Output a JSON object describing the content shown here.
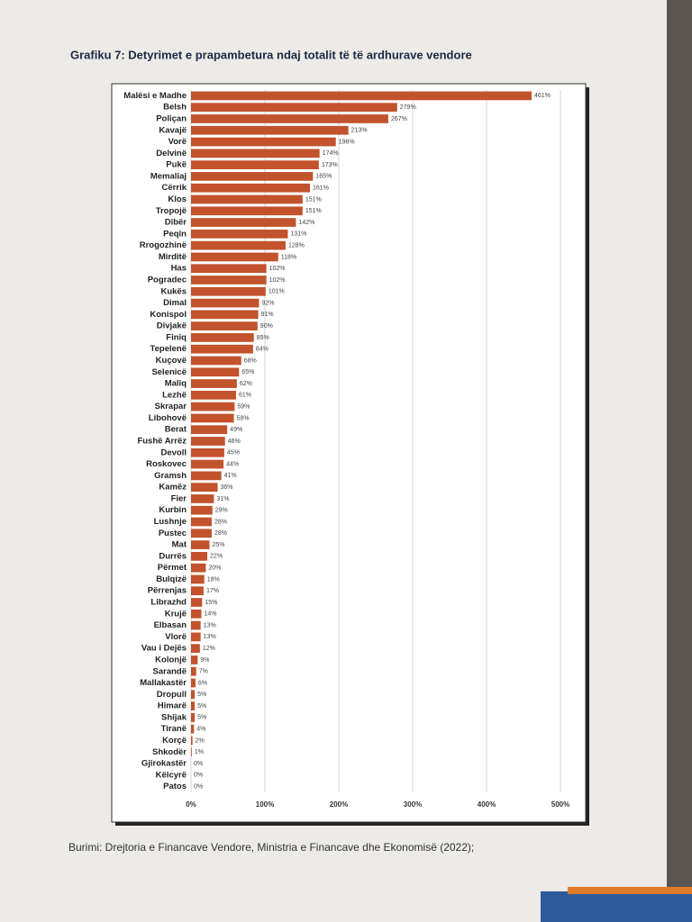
{
  "chart_data": {
    "type": "hbar",
    "title": "Grafiku 7: Detyrimet e prapambetura ndaj totalit të të ardhurave vendore",
    "source": "Burimi: Drejtoria e Financave Vendore, Ministria e Financave dhe Ekonomisë (2022);",
    "color": "#c2532c",
    "categories": [
      "Malësi e Madhe",
      "Belsh",
      "Poliçan",
      "Kavajë",
      "Vorë",
      "Delvinë",
      "Pukë",
      "Memaliaj",
      "Cërrik",
      "Klos",
      "Tropojë",
      "Dibër",
      "Peqin",
      "Rrogozhinë",
      "Mirditë",
      "Has",
      "Pogradec",
      "Kukës",
      "Dimal",
      "Konispol",
      "Divjakë",
      "Finiq",
      "Tepelenë",
      "Kuçovë",
      "Selenicë",
      "Maliq",
      "Lezhë",
      "Skrapar",
      "Libohovë",
      "Berat",
      "Fushë Arrëz",
      "Devoll",
      "Roskovec",
      "Gramsh",
      "Kamëz",
      "Fier",
      "Kurbin",
      "Lushnje",
      "Pustec",
      "Mat",
      "Durrës",
      "Përmet",
      "Bulqizë",
      "Përrenjas",
      "Librazhd",
      "Krujë",
      "Elbasan",
      "Vlorë",
      "Vau i Dejës",
      "Kolonjë",
      "Sarandë",
      "Mallakastër",
      "Dropull",
      "Himarë",
      "Shijak",
      "Tiranë",
      "Korçë",
      "Shkodër",
      "Gjirokastër",
      "Këlcyrë",
      "Patos"
    ],
    "values": [
      461,
      279,
      267,
      213,
      196,
      174,
      173,
      165,
      161,
      151,
      151,
      142,
      131,
      128,
      118,
      102,
      102,
      101,
      92,
      91,
      90,
      85,
      84,
      68,
      65,
      62,
      61,
      59,
      58,
      49,
      46,
      45,
      44,
      41,
      36,
      31,
      29,
      28,
      28,
      25,
      22,
      20,
      18,
      17,
      15,
      14,
      13,
      13,
      12,
      9,
      7,
      6,
      5,
      5,
      5,
      4,
      2,
      1,
      0,
      0,
      0
    ],
    "value_labels": [
      "461%",
      "279%",
      "267%",
      "213%",
      "196%",
      "174%",
      "173%",
      "165%",
      "161%",
      "151%",
      "151%",
      "142%",
      "131%",
      "128%",
      "118%",
      "102%",
      "102%",
      "101%",
      "92%",
      "91%",
      "90%",
      "85%",
      "84%",
      "68%",
      "65%",
      "62%",
      "61%",
      "59%",
      "58%",
      "49%",
      "46%",
      "45%",
      "44%",
      "41%",
      "36%",
      "31%",
      "29%",
      "28%",
      "28%",
      "25%",
      "22%",
      "20%",
      "18%",
      "17%",
      "15%",
      "14%",
      "13%",
      "13%",
      "12%",
      "9%",
      "7%",
      "6%",
      "5%",
      "5%",
      "5%",
      "4%",
      "2%",
      "1%",
      "0%",
      "0%",
      "0%"
    ],
    "xlim": [
      0,
      500
    ],
    "xticks": [
      {
        "value": 0,
        "label": "0%"
      },
      {
        "value": 100,
        "label": "100%"
      },
      {
        "value": 200,
        "label": "200%"
      },
      {
        "value": 300,
        "label": "300%"
      },
      {
        "value": 400,
        "label": "400%"
      },
      {
        "value": 500,
        "label": "500%"
      }
    ],
    "grid": true
  }
}
